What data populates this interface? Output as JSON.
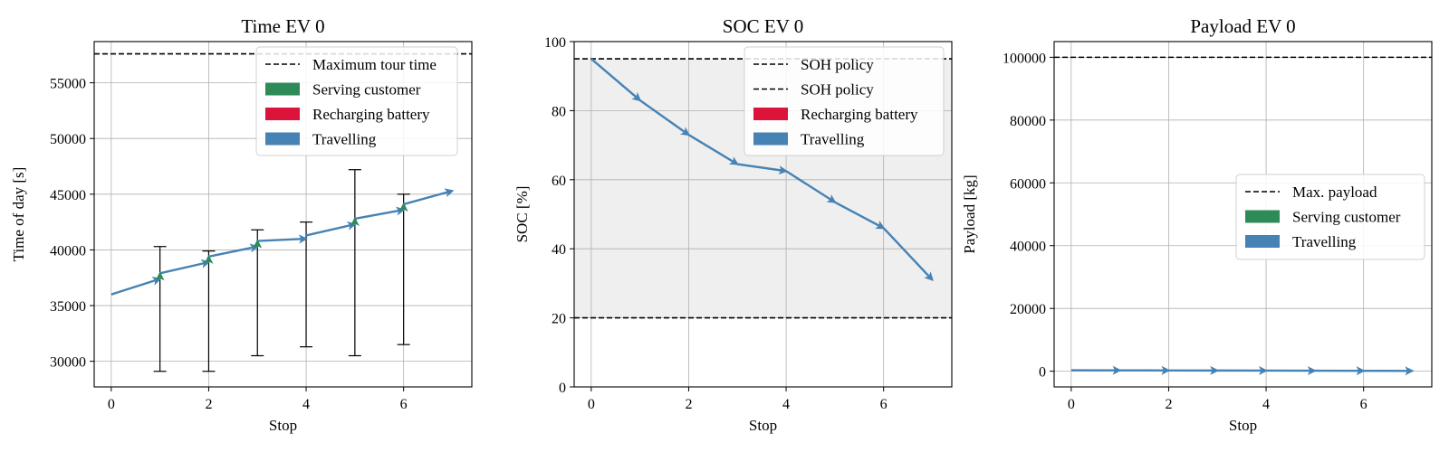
{
  "colors": {
    "serving": "#2e8b57",
    "recharging": "#dc143c",
    "travelling": "#4682b4",
    "limit": "#000000",
    "soc_band": "#efefef",
    "grid": "#b0b0b0"
  },
  "chart_data": [
    {
      "type": "line",
      "title": "Time EV 0",
      "xlabel": "Stop",
      "ylabel": "Time of day [s]",
      "xlim": [
        -0.35,
        7.4
      ],
      "ylim": [
        27700,
        58700
      ],
      "xticks": [
        0,
        2,
        4,
        6
      ],
      "yticks": [
        30000,
        35000,
        40000,
        45000,
        50000,
        55000
      ],
      "grid": true,
      "legend_position": "top-right",
      "hlines": [
        {
          "name": "Maximum tour time",
          "y": 57600
        }
      ],
      "legend": [
        "Maximum tour time",
        "Serving customer",
        "Recharging battery",
        "Travelling"
      ],
      "travel_segments": [
        {
          "from": [
            0,
            36000
          ],
          "to": [
            1,
            37400
          ]
        },
        {
          "from": [
            1,
            37900
          ],
          "to": [
            2,
            38900
          ]
        },
        {
          "from": [
            2,
            39400
          ],
          "to": [
            3,
            40300
          ]
        },
        {
          "from": [
            3,
            40800
          ],
          "to": [
            4,
            41000
          ]
        },
        {
          "from": [
            4,
            41300
          ],
          "to": [
            5,
            42300
          ]
        },
        {
          "from": [
            5,
            42800
          ],
          "to": [
            6,
            43600
          ]
        },
        {
          "from": [
            6,
            44100
          ],
          "to": [
            7,
            45300
          ]
        }
      ],
      "service_segments": [
        {
          "from": [
            1,
            37400
          ],
          "to": [
            1,
            37900
          ]
        },
        {
          "from": [
            2,
            38900
          ],
          "to": [
            2,
            39400
          ]
        },
        {
          "from": [
            3,
            40300
          ],
          "to": [
            3,
            40800
          ]
        },
        {
          "from": [
            5,
            42300
          ],
          "to": [
            5,
            42800
          ]
        },
        {
          "from": [
            6,
            43600
          ],
          "to": [
            6,
            44100
          ]
        }
      ],
      "time_windows": [
        {
          "x": 1,
          "low": 29100,
          "high": 40300
        },
        {
          "x": 2,
          "low": 29100,
          "high": 39900
        },
        {
          "x": 3,
          "low": 30500,
          "high": 41800
        },
        {
          "x": 4,
          "low": 31300,
          "high": 42500
        },
        {
          "x": 5,
          "low": 30500,
          "high": 47200
        },
        {
          "x": 6,
          "low": 31500,
          "high": 45000
        }
      ]
    },
    {
      "type": "line",
      "title": "SOC EV 0",
      "xlabel": "Stop",
      "ylabel": "SOC [%]",
      "xlim": [
        -0.35,
        7.4
      ],
      "ylim": [
        0,
        100
      ],
      "xticks": [
        0,
        2,
        4,
        6
      ],
      "yticks": [
        0,
        20,
        40,
        60,
        80,
        100
      ],
      "grid": true,
      "legend_position": "top-right",
      "band": [
        20,
        95
      ],
      "hlines": [
        {
          "name": "SOH policy",
          "y": 95
        },
        {
          "name": "SOH policy",
          "y": 20
        }
      ],
      "legend": [
        "SOH policy",
        "SOH policy",
        "Recharging battery",
        "Travelling"
      ],
      "travel_segments": [
        {
          "from": [
            0,
            95
          ],
          "to": [
            1,
            83
          ]
        },
        {
          "from": [
            1,
            83
          ],
          "to": [
            2,
            73
          ]
        },
        {
          "from": [
            2,
            73
          ],
          "to": [
            3,
            64.5
          ]
        },
        {
          "from": [
            3,
            64.5
          ],
          "to": [
            4,
            62.5
          ]
        },
        {
          "from": [
            4,
            62.5
          ],
          "to": [
            5,
            53.5
          ]
        },
        {
          "from": [
            5,
            53.5
          ],
          "to": [
            6,
            46
          ]
        },
        {
          "from": [
            6,
            46
          ],
          "to": [
            7,
            31
          ]
        }
      ]
    },
    {
      "type": "line",
      "title": "Payload EV 0",
      "xlabel": "Stop",
      "ylabel": "Payload [kg]",
      "xlim": [
        -0.35,
        7.4
      ],
      "ylim": [
        -5000,
        105000
      ],
      "xticks": [
        0,
        2,
        4,
        6
      ],
      "yticks": [
        0,
        20000,
        40000,
        60000,
        80000,
        100000
      ],
      "grid": true,
      "legend_position": "center-right",
      "hlines": [
        {
          "name": "Max. payload",
          "y": 100000
        }
      ],
      "legend": [
        "Max. payload",
        "Serving customer",
        "Travelling"
      ],
      "travel_segments": [
        {
          "from": [
            0,
            300
          ],
          "to": [
            1,
            280
          ]
        },
        {
          "from": [
            1,
            280
          ],
          "to": [
            2,
            250
          ]
        },
        {
          "from": [
            2,
            250
          ],
          "to": [
            3,
            220
          ]
        },
        {
          "from": [
            3,
            220
          ],
          "to": [
            4,
            190
          ]
        },
        {
          "from": [
            4,
            190
          ],
          "to": [
            5,
            160
          ]
        },
        {
          "from": [
            5,
            160
          ],
          "to": [
            6,
            130
          ]
        },
        {
          "from": [
            6,
            130
          ],
          "to": [
            7,
            100
          ]
        }
      ]
    }
  ]
}
